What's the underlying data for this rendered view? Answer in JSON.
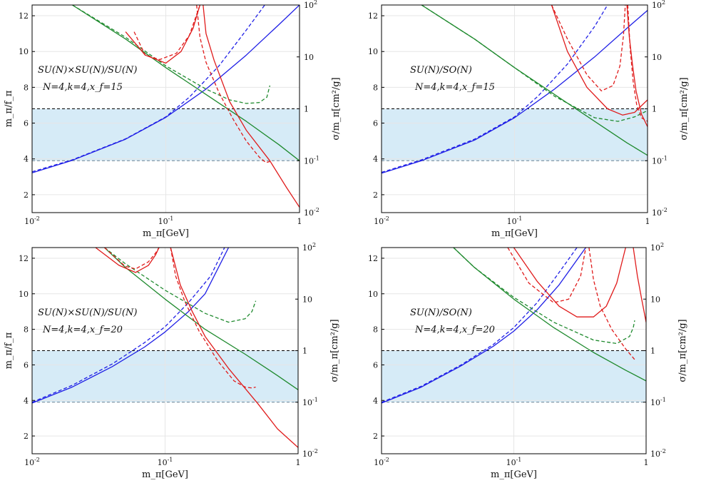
{
  "colors": {
    "band": "#d6ebf7",
    "blue": "#1f1fe6",
    "green": "#1f8a2e",
    "red": "#e01b1b",
    "frame": "#000000",
    "bound_upper": "#000000",
    "bound_lower": "#6b8192"
  },
  "chart_data": [
    {
      "type": "line",
      "xlabel": "m_π[GeV]",
      "ylabel": "m_π/f_π",
      "ylabel_right": "σ/m_π[cm²/g]",
      "xscale": "log",
      "xlim": [
        0.01,
        1
      ],
      "ylim": [
        1,
        12.6
      ],
      "y2scale": "log",
      "y2lim": [
        0.01,
        100
      ],
      "x_ticks": [
        "10^-2",
        "10^-1",
        "1"
      ],
      "y_ticks": [
        "2",
        "4",
        "6",
        "8",
        "10",
        "12"
      ],
      "y2_ticks": [
        "10^-2",
        "10^-1",
        "1",
        "10",
        "10^2"
      ],
      "grid": true,
      "annotation": [
        "SU(N)×SU(N)/SU(N)",
        "N=4,k=4,x_f=15"
      ],
      "shaded_band": {
        "y2_range": [
          0.1,
          1
        ]
      },
      "series": [
        {
          "color": "blue",
          "style": "solid",
          "axis": "left",
          "x": [
            0.01,
            0.02,
            0.05,
            0.1,
            0.2,
            0.4,
            0.7,
            1.0
          ],
          "y": [
            3.22,
            3.92,
            5.1,
            6.32,
            7.9,
            9.8,
            11.5,
            12.6
          ]
        },
        {
          "color": "blue",
          "style": "dashed",
          "axis": "left",
          "x": [
            0.01,
            0.02,
            0.05,
            0.1,
            0.15,
            0.25,
            0.4,
            0.55
          ],
          "y": [
            3.28,
            3.95,
            5.12,
            6.35,
            7.45,
            9.2,
            11.2,
            12.6
          ]
        },
        {
          "color": "green",
          "style": "solid",
          "axis": "left",
          "x": [
            0.02,
            0.05,
            0.1,
            0.2,
            0.4,
            0.7,
            1.0
          ],
          "y": [
            12.6,
            10.7,
            9.1,
            7.6,
            6.1,
            4.8,
            3.9
          ]
        },
        {
          "color": "green",
          "style": "dashed",
          "axis": "left",
          "x": [
            0.02,
            0.05,
            0.1,
            0.2,
            0.3,
            0.4,
            0.5,
            0.57,
            0.6
          ],
          "y": [
            12.6,
            10.8,
            9.2,
            7.9,
            7.3,
            7.1,
            7.15,
            7.45,
            8.1
          ]
        },
        {
          "color": "red",
          "style": "solid",
          "axis": "left",
          "x": [
            0.05,
            0.07,
            0.1,
            0.13,
            0.16,
            0.18
          ],
          "y": [
            11.1,
            9.8,
            9.35,
            10.0,
            11.3,
            12.6
          ]
        },
        {
          "color": "red",
          "style": "solid",
          "axis": "left",
          "x": [
            0.19,
            0.2,
            0.23,
            0.3,
            0.4,
            0.6,
            0.8,
            1.0
          ],
          "y": [
            12.6,
            11.0,
            9.5,
            7.2,
            5.6,
            3.9,
            2.4,
            1.3
          ]
        },
        {
          "color": "red",
          "style": "dashed",
          "axis": "left",
          "x": [
            0.058,
            0.07,
            0.09,
            0.12,
            0.15,
            0.18
          ],
          "y": [
            11.1,
            9.8,
            9.55,
            9.9,
            10.9,
            12.6
          ]
        },
        {
          "color": "red",
          "style": "dashed",
          "axis": "left",
          "x": [
            0.17,
            0.18,
            0.2,
            0.25,
            0.32,
            0.4,
            0.5,
            0.56,
            0.6
          ],
          "y": [
            12.6,
            10.8,
            9.4,
            7.7,
            6.2,
            5.0,
            4.1,
            3.8,
            3.85
          ]
        }
      ]
    },
    {
      "type": "line",
      "xlabel": "m_π[GeV]",
      "ylabel_right": "σ/m_π[cm²/g]",
      "xscale": "log",
      "xlim": [
        0.01,
        1
      ],
      "ylim": [
        1,
        12.6
      ],
      "y2scale": "log",
      "y2lim": [
        0.01,
        100
      ],
      "x_ticks": [
        "10^-2",
        "10^-1",
        "1"
      ],
      "y_ticks": [
        "2",
        "4",
        "6",
        "8",
        "10",
        "12"
      ],
      "y2_ticks": [
        "10^-2",
        "10^-1",
        "1",
        "10",
        "10^2"
      ],
      "grid": true,
      "annotation": [
        "SU(N)/SO(N)",
        "N=4,k=4,x_f=15"
      ],
      "shaded_band": {
        "y2_range": [
          0.1,
          1
        ]
      },
      "series": [
        {
          "color": "blue",
          "style": "solid",
          "axis": "left",
          "x": [
            0.01,
            0.02,
            0.05,
            0.1,
            0.2,
            0.4,
            0.7,
            1.0
          ],
          "y": [
            3.2,
            3.9,
            5.05,
            6.3,
            7.9,
            9.7,
            11.3,
            12.3
          ]
        },
        {
          "color": "blue",
          "style": "dashed",
          "axis": "left",
          "x": [
            0.01,
            0.02,
            0.05,
            0.1,
            0.15,
            0.25,
            0.4,
            0.5
          ],
          "y": [
            3.25,
            3.95,
            5.1,
            6.35,
            7.5,
            9.3,
            11.4,
            12.6
          ]
        },
        {
          "color": "green",
          "style": "solid",
          "axis": "left",
          "x": [
            0.02,
            0.05,
            0.1,
            0.2,
            0.4,
            0.7,
            1.0
          ],
          "y": [
            12.6,
            10.7,
            9.1,
            7.6,
            6.1,
            4.9,
            4.2
          ]
        },
        {
          "color": "green",
          "style": "dashed",
          "axis": "left",
          "x": [
            0.02,
            0.05,
            0.1,
            0.2,
            0.4,
            0.6,
            0.8,
            1.0
          ],
          "y": [
            12.6,
            10.7,
            9.1,
            7.5,
            6.3,
            6.1,
            6.35,
            6.7
          ]
        },
        {
          "color": "red",
          "style": "solid",
          "axis": "left",
          "x": [
            0.19,
            0.25,
            0.35,
            0.5,
            0.65,
            0.8,
            1.0
          ],
          "y": [
            12.6,
            10.0,
            8.0,
            6.8,
            6.45,
            6.6,
            7.3
          ]
        },
        {
          "color": "red",
          "style": "solid",
          "axis": "left",
          "x": [
            0.7,
            0.73,
            0.77,
            0.82,
            0.9,
            1.0
          ],
          "y": [
            12.6,
            10.8,
            9.3,
            7.8,
            6.5,
            5.8
          ]
        },
        {
          "color": "red",
          "style": "dashed",
          "axis": "left",
          "x": [
            0.19,
            0.25,
            0.35,
            0.45,
            0.55,
            0.62,
            0.66,
            0.68
          ],
          "y": [
            12.6,
            10.7,
            8.7,
            7.8,
            8.1,
            9.2,
            10.9,
            12.6
          ]
        },
        {
          "color": "red",
          "style": "dashed",
          "axis": "left",
          "x": [
            0.71,
            0.74,
            0.78,
            0.83,
            0.9,
            1.0
          ],
          "y": [
            12.6,
            10.2,
            8.3,
            7.0,
            6.3,
            6.1
          ]
        }
      ]
    },
    {
      "type": "line",
      "xlabel": "m_π[GeV]",
      "ylabel": "m_π/f_π",
      "ylabel_right": "σ/m_π[cm²/g]",
      "xscale": "log",
      "xlim": [
        0.01,
        1
      ],
      "ylim": [
        1,
        12.6
      ],
      "y2scale": "log",
      "y2lim": [
        0.01,
        100
      ],
      "x_ticks": [
        "10^-2",
        "10^-1",
        "1"
      ],
      "y_ticks": [
        "2",
        "4",
        "6",
        "8",
        "10",
        "12"
      ],
      "y2_ticks": [
        "10^-2",
        "10^-1",
        "1",
        "10",
        "10^2"
      ],
      "grid": true,
      "annotation": [
        "SU(N)×SU(N)/SU(N)",
        "N=4,k=4,x_f=20"
      ],
      "shaded_band": {
        "y2_range": [
          0.1,
          1
        ]
      },
      "series": [
        {
          "color": "blue",
          "style": "solid",
          "axis": "left",
          "x": [
            0.01,
            0.02,
            0.04,
            0.07,
            0.1,
            0.15,
            0.2,
            0.3
          ],
          "y": [
            3.85,
            4.75,
            5.9,
            7.0,
            7.85,
            9.0,
            10.0,
            12.6
          ]
        },
        {
          "color": "blue",
          "style": "dashed",
          "axis": "left",
          "x": [
            0.01,
            0.02,
            0.04,
            0.07,
            0.1,
            0.15,
            0.22,
            0.28
          ],
          "y": [
            3.9,
            4.85,
            6.05,
            7.25,
            8.15,
            9.5,
            11.0,
            12.6
          ]
        },
        {
          "color": "green",
          "style": "solid",
          "axis": "left",
          "x": [
            0.035,
            0.05,
            0.1,
            0.2,
            0.4,
            0.7,
            1.0
          ],
          "y": [
            12.6,
            11.5,
            9.7,
            8.0,
            6.6,
            5.4,
            4.6
          ]
        },
        {
          "color": "green",
          "style": "dashed",
          "axis": "left",
          "x": [
            0.035,
            0.05,
            0.1,
            0.2,
            0.3,
            0.4,
            0.45,
            0.48
          ],
          "y": [
            12.6,
            11.7,
            10.2,
            8.9,
            8.4,
            8.6,
            9.0,
            9.6
          ]
        },
        {
          "color": "red",
          "style": "solid",
          "axis": "left",
          "x": [
            0.03,
            0.045,
            0.06,
            0.075,
            0.085,
            0.09
          ],
          "y": [
            12.6,
            11.6,
            11.2,
            11.6,
            12.2,
            12.6
          ]
        },
        {
          "color": "red",
          "style": "solid",
          "axis": "left",
          "x": [
            0.11,
            0.13,
            0.16,
            0.2,
            0.3,
            0.5,
            0.7,
            1.0
          ],
          "y": [
            12.6,
            10.5,
            9.0,
            7.6,
            5.8,
            3.8,
            2.4,
            1.35
          ]
        },
        {
          "color": "red",
          "style": "dashed",
          "axis": "left",
          "x": [
            0.035,
            0.05,
            0.06,
            0.075,
            0.085,
            0.09
          ],
          "y": [
            12.6,
            11.55,
            11.4,
            11.8,
            12.3,
            12.6
          ]
        },
        {
          "color": "red",
          "style": "dashed",
          "axis": "left",
          "x": [
            0.11,
            0.12,
            0.14,
            0.18,
            0.25,
            0.33,
            0.4,
            0.45,
            0.48
          ],
          "y": [
            12.6,
            11.0,
            9.6,
            7.9,
            6.2,
            5.1,
            4.75,
            4.7,
            4.75
          ]
        }
      ]
    },
    {
      "type": "line",
      "xlabel": "m_π[GeV]",
      "ylabel_right": "σ/m_π[cm²/g]",
      "xscale": "log",
      "xlim": [
        0.01,
        1
      ],
      "ylim": [
        1,
        12.6
      ],
      "y2scale": "log",
      "y2lim": [
        0.01,
        100
      ],
      "x_ticks": [
        "10^-2",
        "10^-1",
        "1"
      ],
      "y_ticks": [
        "2",
        "4",
        "6",
        "8",
        "10",
        "12"
      ],
      "y2_ticks": [
        "10^-2",
        "10^-1",
        "1",
        "10",
        "10^2"
      ],
      "grid": true,
      "annotation": [
        "SU(N)/SO(N)",
        "N=4,k=4,x_f=20"
      ],
      "shaded_band": {
        "y2_range": [
          0.1,
          1
        ]
      },
      "series": [
        {
          "color": "blue",
          "style": "solid",
          "axis": "left",
          "x": [
            0.01,
            0.02,
            0.04,
            0.07,
            0.1,
            0.15,
            0.22,
            0.35
          ],
          "y": [
            3.85,
            4.75,
            5.95,
            7.05,
            7.9,
            9.1,
            10.5,
            12.6
          ]
        },
        {
          "color": "blue",
          "style": "dashed",
          "axis": "left",
          "x": [
            0.01,
            0.02,
            0.04,
            0.07,
            0.1,
            0.15,
            0.22,
            0.3
          ],
          "y": [
            3.9,
            4.8,
            6.0,
            7.15,
            8.1,
            9.5,
            11.2,
            12.6
          ]
        },
        {
          "color": "green",
          "style": "solid",
          "axis": "left",
          "x": [
            0.035,
            0.05,
            0.1,
            0.2,
            0.4,
            0.7,
            1.0
          ],
          "y": [
            12.6,
            11.5,
            9.7,
            8.1,
            6.7,
            5.7,
            5.1
          ]
        },
        {
          "color": "green",
          "style": "dashed",
          "axis": "left",
          "x": [
            0.035,
            0.05,
            0.1,
            0.2,
            0.4,
            0.6,
            0.75,
            0.8,
            0.82
          ],
          "y": [
            12.6,
            11.5,
            9.8,
            8.4,
            7.4,
            7.2,
            7.6,
            8.1,
            8.5
          ]
        },
        {
          "color": "red",
          "style": "solid",
          "axis": "left",
          "x": [
            0.1,
            0.15,
            0.22,
            0.3,
            0.4,
            0.5,
            0.6,
            0.7
          ],
          "y": [
            12.6,
            10.7,
            9.3,
            8.7,
            8.7,
            9.3,
            10.6,
            12.6
          ]
        },
        {
          "color": "red",
          "style": "solid",
          "axis": "left",
          "x": [
            0.8,
            0.86,
            0.92,
            1.0
          ],
          "y": [
            12.6,
            11.0,
            9.8,
            8.4
          ]
        },
        {
          "color": "red",
          "style": "dashed",
          "axis": "left",
          "x": [
            0.09,
            0.13,
            0.2,
            0.26,
            0.32,
            0.35
          ],
          "y": [
            12.6,
            10.6,
            9.5,
            9.7,
            11.0,
            12.6
          ]
        },
        {
          "color": "red",
          "style": "dashed",
          "axis": "left",
          "x": [
            0.37,
            0.4,
            0.45,
            0.55,
            0.7,
            0.82
          ],
          "y": [
            12.6,
            10.8,
            9.3,
            8.0,
            6.9,
            6.3
          ]
        }
      ]
    }
  ]
}
